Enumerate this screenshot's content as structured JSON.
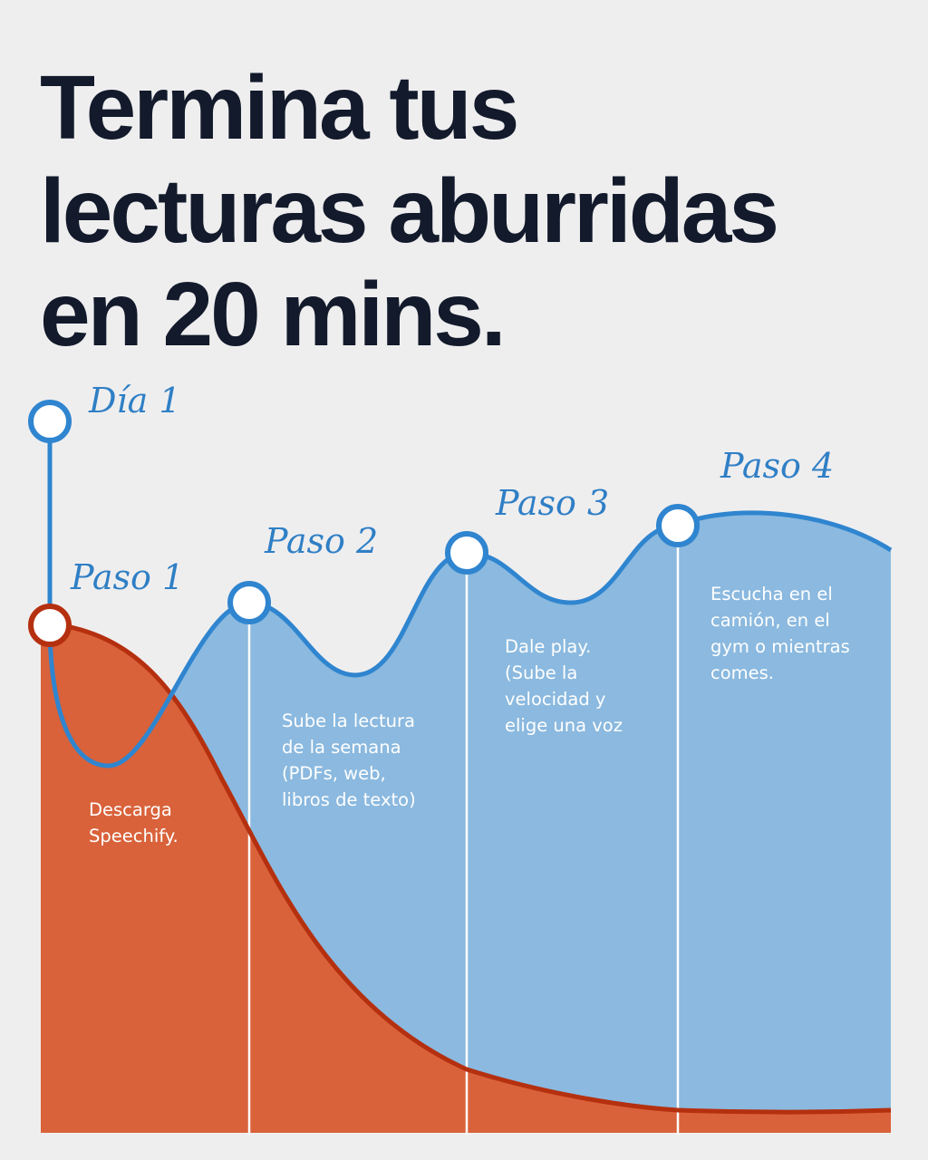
{
  "headline": {
    "lines": [
      "Termina tus",
      "lecturas aburridas",
      "en 20 mins."
    ]
  },
  "labels": {
    "dia": "Día 1",
    "paso1": "Paso 1",
    "paso2": "Paso 2",
    "paso3": "Paso 3",
    "paso4": "Paso 4"
  },
  "steps": {
    "step1": [
      "Descarga",
      "Speechify."
    ],
    "step2": [
      "Sube la lectura",
      "de la semana",
      "(PDFs, web,",
      "libros de texto)"
    ],
    "step3": [
      "Dale play.",
      "(Sube la",
      "velocidad y",
      "elige una voz"
    ],
    "step4": [
      "Escucha en el",
      "camión, en el",
      "gym o mientras",
      "comes."
    ]
  },
  "colors": {
    "background": "#efeeef",
    "headline": "#121a2b",
    "blue_line": "#2f85cf",
    "blue_fill": "#8bb9df",
    "orange_fill": "#d9623a",
    "orange_line": "#b5300f"
  }
}
